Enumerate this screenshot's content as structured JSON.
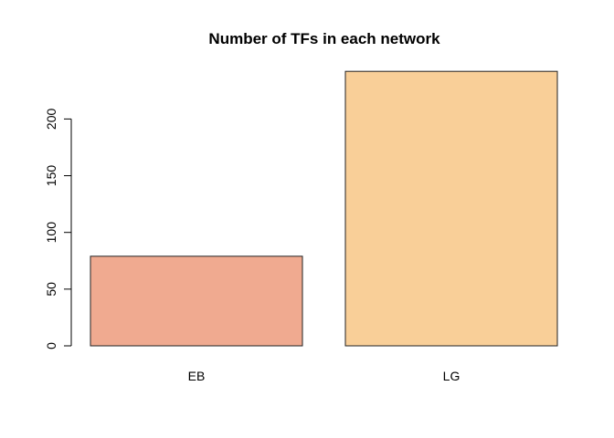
{
  "chart_data": {
    "type": "bar",
    "title": "Number of TFs in each network",
    "xlabel": "",
    "ylabel": "",
    "categories": [
      "EB",
      "LG"
    ],
    "values": [
      79,
      242
    ],
    "colors": [
      "#F0AA90",
      "#F9CF98"
    ],
    "yticks": [
      0,
      50,
      100,
      150,
      200
    ],
    "ylim": [
      0,
      242
    ],
    "grid": false,
    "legend": "none"
  }
}
